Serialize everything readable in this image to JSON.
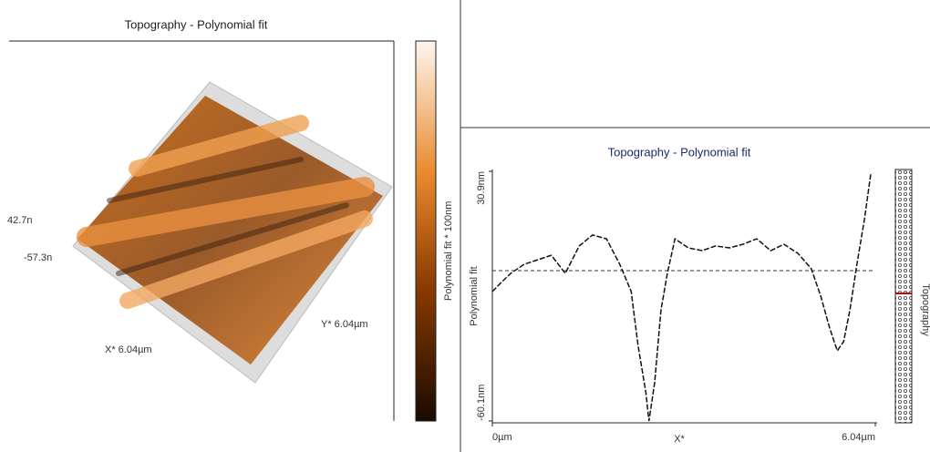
{
  "left_panel": {
    "title": "Topography - Polynomial fit",
    "z_top": "42.7n",
    "z_bottom": "-57.3n",
    "x_label": "X* 6.04µm",
    "y_label": "Y* 6.04µm",
    "colorbar_label": "Polynomial fit * 100nm"
  },
  "chart_data": {
    "type": "line",
    "title": "Topography - Polynomial fit",
    "y_label": "Polynomial fit",
    "x_label": "X*",
    "side_label": "Topography",
    "xlim": [
      0,
      6.04
    ],
    "xticks": [
      {
        "value": 0,
        "label": "0µm"
      },
      {
        "value": 6.04,
        "label": "6.04µm"
      }
    ],
    "ylim": [
      -60.1,
      30.9
    ],
    "yticks": [
      {
        "value": 30.9,
        "label": "30.9nm"
      },
      {
        "value": -60.1,
        "label": "-60.1nm"
      }
    ],
    "color": "#111111",
    "x": [
      0,
      0.14,
      0.29,
      0.5,
      0.72,
      0.93,
      1.15,
      1.37,
      1.58,
      1.8,
      2.01,
      2.19,
      2.3,
      2.42,
      2.47,
      2.56,
      2.66,
      2.76,
      2.88,
      3.09,
      3.31,
      3.52,
      3.74,
      3.95,
      4.17,
      4.39,
      4.6,
      4.82,
      5.03,
      5.18,
      5.32,
      5.44,
      5.54,
      5.64,
      5.75,
      5.87,
      5.97
    ],
    "values": [
      -12.9,
      -9.6,
      -6.3,
      -3,
      -1.3,
      0.3,
      -6.3,
      3.7,
      7.7,
      6.3,
      -3,
      -12.9,
      -32.9,
      -49.5,
      -60.1,
      -46.1,
      -19.6,
      -6.3,
      6.3,
      3,
      2,
      3.7,
      3,
      4.3,
      6.3,
      2,
      4.3,
      1,
      -4.6,
      -14.6,
      -26.2,
      -34.5,
      -31.2,
      -19.6,
      -3,
      13.6,
      30.2
    ]
  }
}
